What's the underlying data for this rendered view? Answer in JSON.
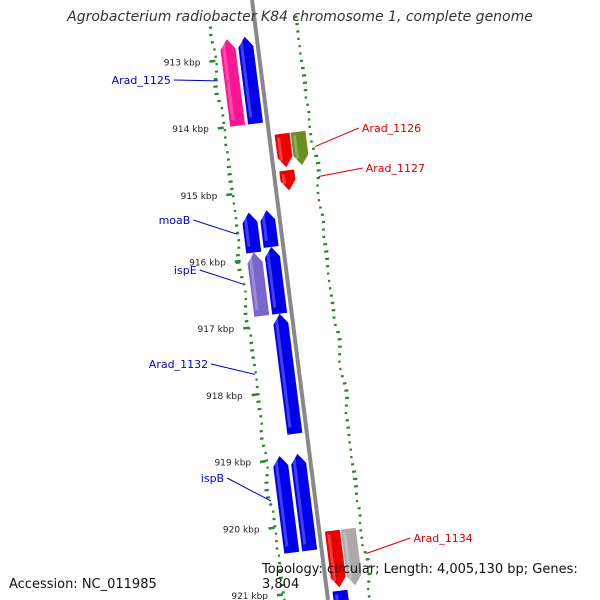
{
  "title": "Agrobacterium radiobacter K84 chromosome 1, complete genome",
  "accession": "Accession: NC_011985",
  "topology": "Topology: circular; Length: 4,005,130 bp; Genes: 3,804",
  "ticks": [
    {
      "kb": 913,
      "label": "913 kbp"
    },
    {
      "kb": 914,
      "label": "914 kbp"
    },
    {
      "kb": 915,
      "label": "915 kbp"
    },
    {
      "kb": 916,
      "label": "916 kbp"
    },
    {
      "kb": 917,
      "label": "917 kbp"
    },
    {
      "kb": 918,
      "label": "918 kbp"
    },
    {
      "kb": 919,
      "label": "919 kbp"
    },
    {
      "kb": 920,
      "label": "920 kbp"
    },
    {
      "kb": 921,
      "label": "921 kbp"
    }
  ],
  "colors": {
    "blue": "#0000ee",
    "lavender": "#7766cc",
    "pink": "#ff1493",
    "red": "#ee0000",
    "olive": "#6b8e23",
    "gray": "#aaaaaa",
    "backbone": "#888888",
    "skew": "#228b22",
    "label_blue": "#0000cc",
    "label_red": "#dd0000"
  },
  "features": [
    {
      "start": 912.7,
      "end": 914.0,
      "strand": "-",
      "track": 2,
      "color": "pink"
    },
    {
      "start": 912.7,
      "end": 914.0,
      "strand": "-",
      "track": 1,
      "color": "blue"
    },
    {
      "start": 914.2,
      "end": 914.7,
      "strand": "+",
      "track": 1,
      "color": "red"
    },
    {
      "start": 914.2,
      "end": 914.7,
      "strand": "+",
      "track": 2,
      "color": "olive"
    },
    {
      "start": 914.75,
      "end": 915.05,
      "strand": "+",
      "track": 1,
      "color": "red"
    },
    {
      "start": 915.3,
      "end": 915.9,
      "strand": "-",
      "track": 2,
      "color": "blue"
    },
    {
      "start": 915.3,
      "end": 915.85,
      "strand": "-",
      "track": 1,
      "color": "blue"
    },
    {
      "start": 915.9,
      "end": 916.85,
      "strand": "-",
      "track": 2,
      "color": "lavender"
    },
    {
      "start": 915.85,
      "end": 916.85,
      "strand": "-",
      "track": 1,
      "color": "blue"
    },
    {
      "start": 916.85,
      "end": 918.65,
      "strand": "-",
      "track": 1,
      "color": "blue"
    },
    {
      "start": 918.95,
      "end": 920.4,
      "strand": "-",
      "track": 2,
      "color": "blue"
    },
    {
      "start": 918.95,
      "end": 920.4,
      "strand": "-",
      "track": 1,
      "color": "blue"
    },
    {
      "start": 920.15,
      "end": 921.0,
      "strand": "+",
      "track": 1,
      "color": "red"
    },
    {
      "start": 920.15,
      "end": 921.0,
      "strand": "+",
      "track": 2,
      "color": "gray"
    },
    {
      "start": 921.05,
      "end": 921.6,
      "strand": "+",
      "track": 1,
      "color": "blue"
    }
  ],
  "labels": [
    {
      "text": "Arad_1125",
      "side": "left",
      "color": "label_blue"
    },
    {
      "text": "Arad_1126",
      "side": "right",
      "color": "label_red"
    },
    {
      "text": "Arad_1127",
      "side": "right",
      "color": "label_red"
    },
    {
      "text": "moaB",
      "side": "left",
      "color": "label_blue"
    },
    {
      "text": "ispE",
      "side": "left",
      "color": "label_blue"
    },
    {
      "text": "Arad_1132",
      "side": "left",
      "color": "label_blue"
    },
    {
      "text": "ispB",
      "side": "left",
      "color": "label_blue"
    },
    {
      "text": "Arad_1134",
      "side": "right",
      "color": "label_red"
    }
  ]
}
